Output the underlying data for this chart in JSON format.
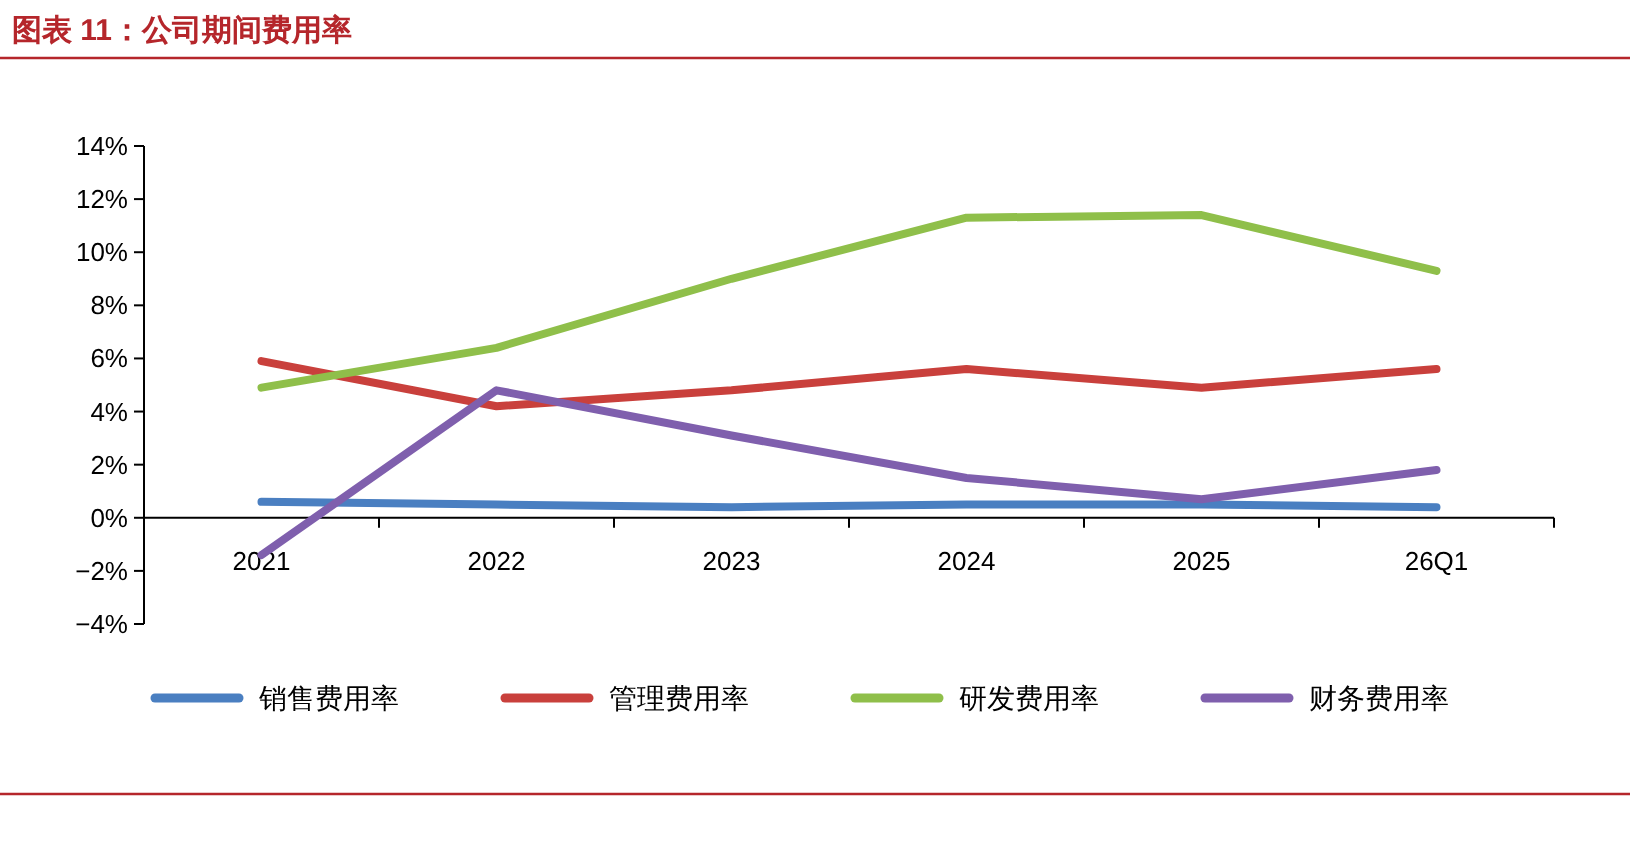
{
  "chart_data": {
    "type": "line",
    "title": "图表 11：公司期间费用率",
    "categories": [
      "2021",
      "2022",
      "2023",
      "2024",
      "2025",
      "26Q1"
    ],
    "series": [
      {
        "name": "销售费用率",
        "color": "#4a7fc1",
        "values": [
          0.6,
          0.5,
          0.4,
          0.5,
          0.5,
          0.4
        ]
      },
      {
        "name": "管理费用率",
        "color": "#c9403c",
        "values": [
          5.9,
          4.2,
          4.8,
          5.6,
          4.9,
          5.6
        ]
      },
      {
        "name": "研发费用率",
        "color": "#8fbf4a",
        "values": [
          4.9,
          6.4,
          9.0,
          11.3,
          11.4,
          9.3
        ]
      },
      {
        "name": "财务费用率",
        "color": "#7f5fad",
        "values": [
          -1.4,
          4.8,
          3.1,
          1.5,
          0.7,
          1.8
        ]
      }
    ],
    "ylim": [
      -4,
      14
    ],
    "yticks": [
      {
        "value": -4,
        "label": "−4%"
      },
      {
        "value": -2,
        "label": "−2%"
      },
      {
        "value": 0,
        "label": "0%"
      },
      {
        "value": 2,
        "label": "2%"
      },
      {
        "value": 4,
        "label": "4%"
      },
      {
        "value": 6,
        "label": "6%"
      },
      {
        "value": 8,
        "label": "8%"
      },
      {
        "value": 10,
        "label": "10%"
      },
      {
        "value": 12,
        "label": "12%"
      },
      {
        "value": 14,
        "label": "14%"
      }
    ],
    "legend": "bottom"
  }
}
